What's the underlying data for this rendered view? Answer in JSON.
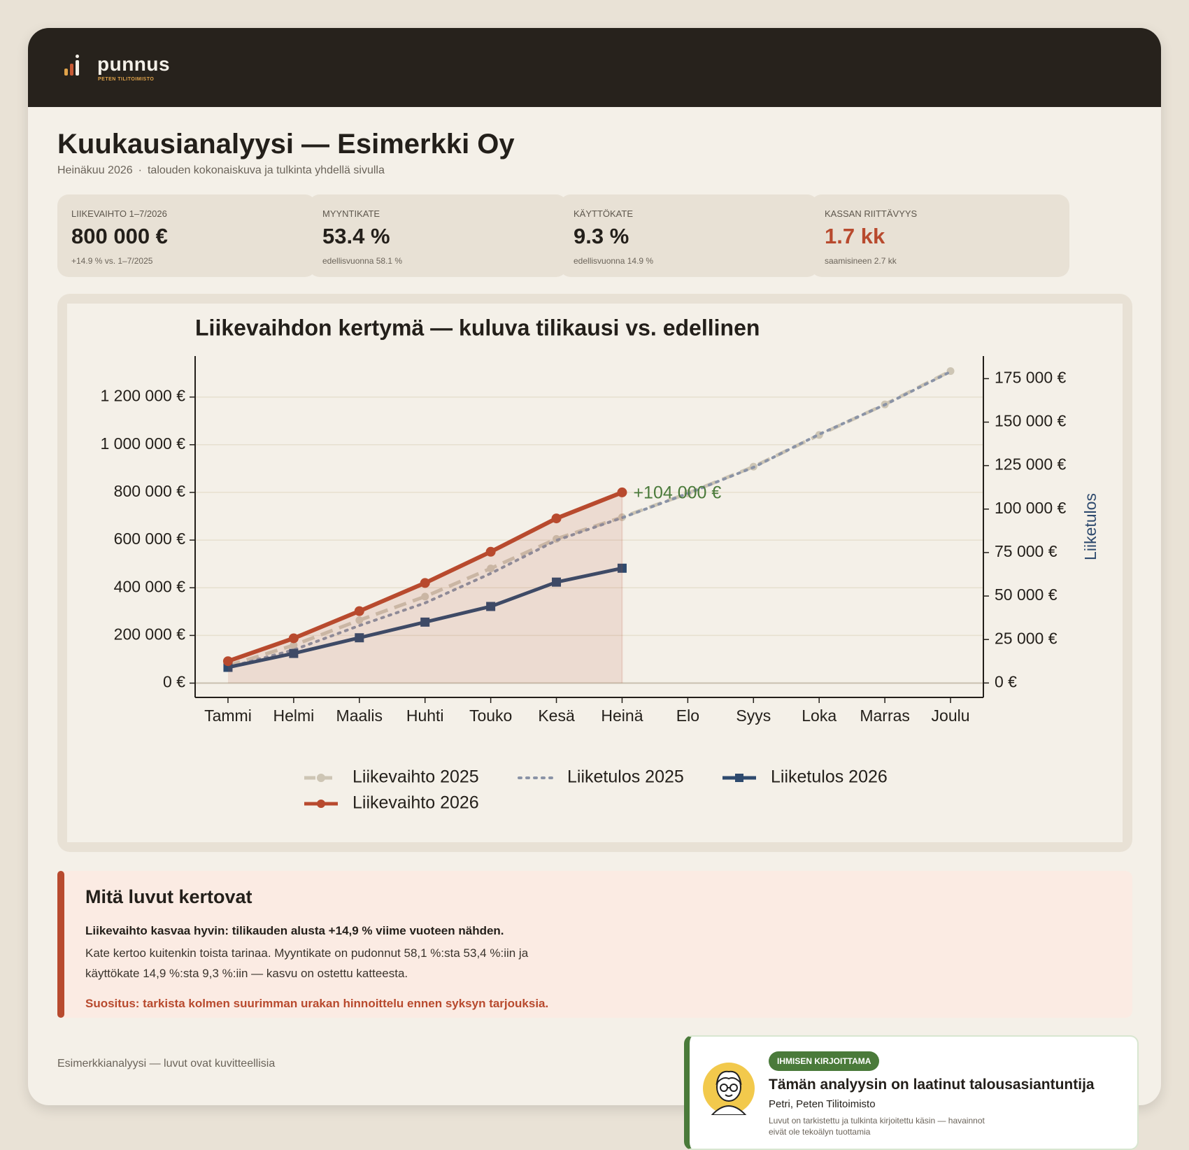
{
  "header": {
    "logo": "punnus",
    "tagline": "PETEN TILITOIMISTO"
  },
  "title": "Kuukausianalyysi — Esimerkki Oy",
  "subtitle": {
    "period": "Heinäkuu 2026",
    "separator": "·",
    "text": "talouden kokonaiskuva ja tulkinta yhdellä sivulla"
  },
  "kpis": [
    {
      "label": "LIIKEVAIHTO 1–7/2026",
      "value": "800 000 €",
      "note": "+14.9 % vs. 1–7/2025"
    },
    {
      "label": "MYYNTIKATE",
      "value": "53.4 %",
      "note": "edellisvuonna 58.1 %"
    },
    {
      "label": "KÄYTTÖKATE",
      "value": "9.3 %",
      "note": "edellisvuonna 14.9 %"
    },
    {
      "label": "KASSAN RIITTÄVYYS",
      "value": "1.7 kk",
      "note": "saamisineen 2.7 kk",
      "color": "#b84a2e"
    }
  ],
  "chart_data": {
    "type": "line",
    "title": "Liikevaihdon kertymä — kuluva tilikausi vs. edellinen",
    "y2label": "Liiketulos",
    "y2label_color": "#2e4a6e",
    "annotation": "+104 000 €",
    "annotation_color": "#4a7a3a",
    "categories": [
      "Tammi",
      "Helmi",
      "Maalis",
      "Huhti",
      "Touko",
      "Kesä",
      "Heinä",
      "Elo",
      "Syys",
      "Loka",
      "Marras",
      "Joulu"
    ],
    "ylim": [
      -60000,
      1372000
    ],
    "yticks": [
      {
        "value": 0,
        "label": "0 €"
      },
      {
        "value": 200000,
        "label": "200 000 €"
      },
      {
        "value": 400000,
        "label": "400 000 €"
      },
      {
        "value": 600000,
        "label": "600 000 €"
      },
      {
        "value": 800000,
        "label": "800 000 €"
      },
      {
        "value": 1000000,
        "label": "1 000 000 €"
      },
      {
        "value": 1200000,
        "label": "1 200 000 €"
      }
    ],
    "y2lim": [
      -8300,
      188000
    ],
    "y2ticks": [
      {
        "value": 0,
        "label": "0 €"
      },
      {
        "value": 25000,
        "label": "25 000 €"
      },
      {
        "value": 50000,
        "label": "50 000 €"
      },
      {
        "value": 75000,
        "label": "75 000 €"
      },
      {
        "value": 100000,
        "label": "100 000 €"
      },
      {
        "value": 125000,
        "label": "125 000 €"
      },
      {
        "value": 150000,
        "label": "150 000 €"
      },
      {
        "value": 175000,
        "label": "175 000 €"
      }
    ],
    "grid": true,
    "series": [
      {
        "name": "Liikevaihto 2025",
        "color": "#cdc5b4",
        "dash": "dashed",
        "marker": "circle",
        "values": [
          73000,
          159000,
          264000,
          363000,
          481000,
          605000,
          696000,
          796000,
          908000,
          1041000,
          1169000,
          1309000
        ]
      },
      {
        "name": "Liiketulos 2025",
        "color": "#8a93a6",
        "dash": "dotted",
        "axis": "y2",
        "values": [
          9000,
          19000,
          33000,
          46000,
          63000,
          82000,
          95000,
          109000,
          124000,
          143000,
          160000,
          179000
        ]
      },
      {
        "name": "Liiketulos 2026",
        "color": "#2e4a6e",
        "marker": "square",
        "axis": "y2",
        "values": [
          9000,
          17000,
          26000,
          35000,
          44000,
          58000,
          66000,
          null,
          null,
          null,
          null,
          null
        ]
      },
      {
        "name": "Liikevaihto 2026",
        "color": "#b84a2e",
        "marker": "circle",
        "area": true,
        "values": [
          92000,
          188000,
          302000,
          420000,
          551000,
          691000,
          800000,
          null,
          null,
          null,
          null,
          null
        ]
      }
    ]
  },
  "insight": {
    "title": "Mitä luvut kertovat",
    "lead": "Liikevaihto kasvaa hyvin: tilikauden alusta +14,9 % viime vuoteen nähden.",
    "body": "Kate kertoo kuitenkin toista tarinaa. Myyntikate on pudonnut 58,1 %:sta 53,4 %:iin ja käyttökate 14,9 %:sta 9,3 %:iin — kasvu on ostettu katteesta.",
    "recommendation": "Suositus: tarkista kolmen suurimman urakan hinnoittelu ennen syksyn tarjouksia."
  },
  "footer": "Esimerkkianalyysi — luvut ovat kuvitteellisia",
  "human_card": {
    "badge": "IHMISEN KIRJOITTAMA",
    "title": "Tämän analyysin on laatinut talousasiantuntija",
    "author": "Petri, Peten Tilitoimisto",
    "text": "Luvut on tarkistettu ja tulkinta kirjoitettu käsin — havainnot eivät ole tekoälyn tuottamia"
  }
}
